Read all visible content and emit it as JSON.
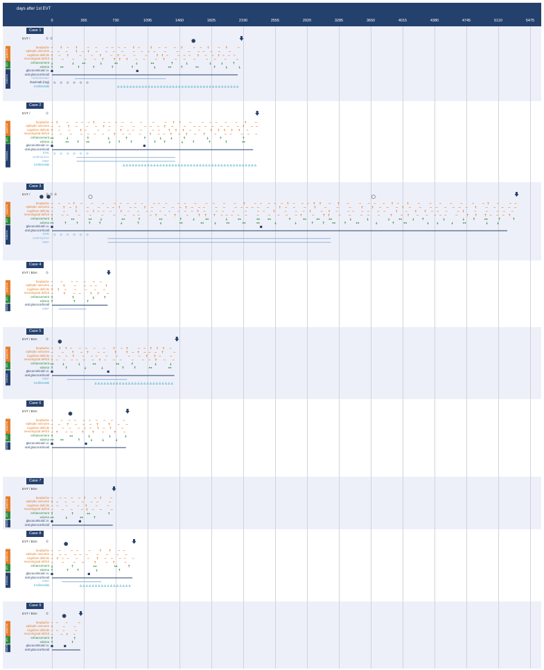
{
  "header": {
    "title": "days after 1st EVT",
    "ticks": [
      "0",
      "365",
      "730",
      "1095",
      "1460",
      "1825",
      "2190",
      "2555",
      "2920",
      "3285",
      "3650",
      "4015",
      "4380",
      "4745",
      "5110",
      "5475"
    ]
  },
  "colors": {
    "header_bg": "#24406d",
    "symptoms": "#e57d2a",
    "mri": "#2f8a3e",
    "treatment": "#24406d",
    "treatment_light": "#8fb3dc",
    "treatment_cyan": "#2ea6c8",
    "panel_shade": "#eef0f9"
  },
  "group_labels": {
    "symptoms": "symptoms",
    "mri": "MRI",
    "treatment": "treatment"
  },
  "icons": {
    "end_marker": "down-arrow-icon",
    "event_marker": "numbered-circle-icon",
    "symptom_onset": "up-arrow-icon",
    "symptom_resolution": "down-arrow-icon",
    "symptom_persisting": "dash-icon",
    "mri_increase": "up-arrow-icon",
    "mri_decrease": "down-arrow-icon",
    "mri_stable": "double-arrow-icon",
    "dose_marker": "diamond-icon",
    "infusion_marker": "triangle-icon",
    "iv_pulse": "square-icon"
  },
  "cases": [
    {
      "title": "Case 1",
      "evt_label": "EVT /",
      "numbers": [
        "①",
        "②"
      ],
      "rows": [
        {
          "label": "headache",
          "group": "sym"
        },
        {
          "label": "epileptic seizures",
          "group": "sym"
        },
        {
          "label": "cognitive deficits",
          "group": "sym"
        },
        {
          "label": "neurological deficit",
          "group": "sym"
        },
        {
          "label": "enhancement",
          "group": "mri"
        },
        {
          "label": "edema",
          "group": "mri"
        },
        {
          "label": "glucocorticoid i.v.",
          "group": "trt"
        },
        {
          "label": "oral glucocorticoid",
          "group": "trt"
        },
        {
          "label": "methotrexate",
          "group": "trt-light"
        },
        {
          "label": "rituximab (mg)",
          "group": "trt"
        },
        {
          "label": "tocilizumab",
          "group": "trt-cyan"
        }
      ]
    },
    {
      "title": "Case 2",
      "evt_label": "EVT /",
      "numbers": [
        "①"
      ],
      "rows": [
        {
          "label": "headache",
          "group": "sym"
        },
        {
          "label": "epileptic seizures",
          "group": "sym"
        },
        {
          "label": "cognitive deficits",
          "group": "sym"
        },
        {
          "label": "neurological deficit",
          "group": "sym"
        },
        {
          "label": "enhancement",
          "group": "mri"
        },
        {
          "label": "edema",
          "group": "mri"
        },
        {
          "label": "glucocorticoid i.v.",
          "group": "trt"
        },
        {
          "label": "oral glucocorticoid",
          "group": "trt"
        },
        {
          "label": "CYC",
          "group": "trt-cyan"
        },
        {
          "label": "azathioprine",
          "group": "trt-light"
        },
        {
          "label": "MMF",
          "group": "trt-light"
        },
        {
          "label": "tocilizumab",
          "group": "trt-cyan"
        }
      ]
    },
    {
      "title": "Case 3",
      "evt_label": "EVT /",
      "numbers": [
        "①",
        "②",
        "③"
      ],
      "rows": [
        {
          "label": "headache",
          "group": "sym"
        },
        {
          "label": "epileptic seizures",
          "group": "sym"
        },
        {
          "label": "cognitive deficits",
          "group": "sym"
        },
        {
          "label": "neurological deficit",
          "group": "sym"
        },
        {
          "label": "enhancement",
          "group": "mri"
        },
        {
          "label": "edema",
          "group": "mri"
        },
        {
          "label": "glucocorticoid i.v.",
          "group": "trt"
        },
        {
          "label": "oral glucocorticoid",
          "group": "trt"
        },
        {
          "label": "CYC",
          "group": "trt-cyan"
        },
        {
          "label": "azathioprine",
          "group": "trt-light"
        },
        {
          "label": "MMF",
          "group": "trt-light"
        }
      ]
    },
    {
      "title": "Case 4",
      "evt_label": "EVT / BSA",
      "numbers": [
        "①"
      ],
      "rows": [
        {
          "label": "headache",
          "group": "sym"
        },
        {
          "label": "epileptic seizures",
          "group": "sym"
        },
        {
          "label": "cognitive deficits",
          "group": "sym"
        },
        {
          "label": "neurological deficit",
          "group": "sym"
        },
        {
          "label": "enhancement",
          "group": "mri"
        },
        {
          "label": "edema",
          "group": "mri"
        },
        {
          "label": "oral glucocorticoid",
          "group": "trt"
        },
        {
          "label": "MMF",
          "group": "trt-light"
        }
      ]
    },
    {
      "title": "Case 5",
      "evt_label": "EVT / BSA",
      "numbers": [
        "①"
      ],
      "rows": [
        {
          "label": "headache",
          "group": "sym"
        },
        {
          "label": "epileptic seizures",
          "group": "sym"
        },
        {
          "label": "cognitive deficits",
          "group": "sym"
        },
        {
          "label": "neurological deficit",
          "group": "sym"
        },
        {
          "label": "enhancement",
          "group": "mri"
        },
        {
          "label": "edema",
          "group": "mri"
        },
        {
          "label": "glucocorticoid i.v.",
          "group": "trt"
        },
        {
          "label": "oral glucocorticoid",
          "group": "trt"
        },
        {
          "label": "MMF",
          "group": "trt-light"
        },
        {
          "label": "tocilizumab",
          "group": "trt-cyan"
        }
      ]
    },
    {
      "title": "Case 6",
      "evt_label": "EVT / BSA",
      "numbers": [],
      "rows": [
        {
          "label": "headache",
          "group": "sym"
        },
        {
          "label": "epileptic seizures",
          "group": "sym"
        },
        {
          "label": "cognitive deficits",
          "group": "sym"
        },
        {
          "label": "neurological deficit",
          "group": "sym"
        },
        {
          "label": "enhancement",
          "group": "mri"
        },
        {
          "label": "edema",
          "group": "mri"
        },
        {
          "label": "glucocorticoid i.v.",
          "group": "trt"
        },
        {
          "label": "oral glucocorticoid",
          "group": "trt"
        }
      ]
    },
    {
      "title": "Case 7",
      "evt_label": "EVT / BSA",
      "numbers": [],
      "rows": [
        {
          "label": "headache",
          "group": "sym"
        },
        {
          "label": "epileptic seizures",
          "group": "sym"
        },
        {
          "label": "cognitive deficits",
          "group": "sym"
        },
        {
          "label": "neurological deficit",
          "group": "sym"
        },
        {
          "label": "enhancement",
          "group": "mri"
        },
        {
          "label": "edema",
          "group": "mri"
        },
        {
          "label": "glucocorticoid i.v.",
          "group": "trt"
        },
        {
          "label": "oral glucocorticoid",
          "group": "trt"
        }
      ]
    },
    {
      "title": "Case 8",
      "evt_label": "EVT / BSA",
      "numbers": [
        "①"
      ],
      "rows": [
        {
          "label": "headache",
          "group": "sym"
        },
        {
          "label": "epileptic seizures",
          "group": "sym"
        },
        {
          "label": "cognitive deficits",
          "group": "sym"
        },
        {
          "label": "neurological deficit",
          "group": "sym"
        },
        {
          "label": "enhancement",
          "group": "mri"
        },
        {
          "label": "edema",
          "group": "mri"
        },
        {
          "label": "glucocorticoid i.v.",
          "group": "trt"
        },
        {
          "label": "oral glucocorticoid",
          "group": "trt"
        },
        {
          "label": "MMF",
          "group": "trt-light"
        },
        {
          "label": "tocilizumab",
          "group": "trt-cyan"
        }
      ]
    },
    {
      "title": "Case 9",
      "evt_label": "EVT / BSA",
      "numbers": [
        "①"
      ],
      "rows": [
        {
          "label": "headache",
          "group": "sym"
        },
        {
          "label": "epileptic seizures",
          "group": "sym"
        },
        {
          "label": "cognitive deficits",
          "group": "sym"
        },
        {
          "label": "neurological deficit",
          "group": "sym"
        },
        {
          "label": "enhancement",
          "group": "mri"
        },
        {
          "label": "edema",
          "group": "mri"
        },
        {
          "label": "glucocorticoid i.v.",
          "group": "trt"
        },
        {
          "label": "oral glucocorticoid",
          "group": "trt"
        }
      ]
    }
  ]
}
